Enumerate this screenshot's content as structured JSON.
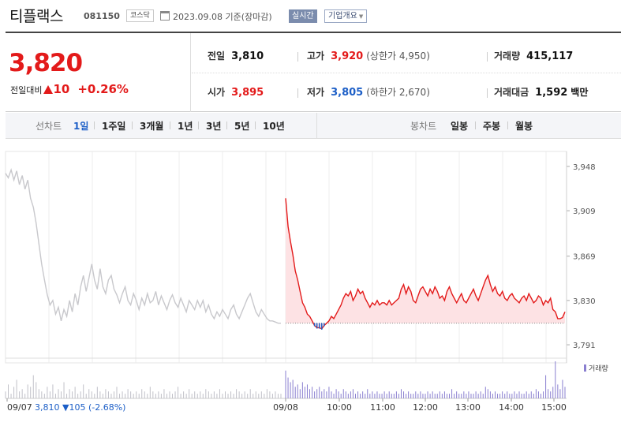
{
  "header": {
    "company_name": "티플랙스",
    "code": "081150",
    "market": "코스닥",
    "date_text": "2023.09.08  기준(장마감)",
    "realtime_label": "실시간",
    "company_info_label": "기업개요"
  },
  "price": {
    "current": "3,820",
    "change_label": "전일대비",
    "change": "10",
    "change_pct": "+0.26%",
    "prev_close_label": "전일",
    "prev_close": "3,810",
    "high_label": "고가",
    "high": "3,920",
    "upper_limit": "(상한가 4,950)",
    "volume_label": "거래량",
    "volume": "415,117",
    "open_label": "시가",
    "open": "3,895",
    "low_label": "저가",
    "low": "3,805",
    "lower_limit": "(하한가 2,670)",
    "amount_label": "거래대금",
    "amount": "1,592",
    "amount_unit": "백만"
  },
  "period_bar": {
    "line_chart_label": "선차트",
    "line_periods": [
      "1일",
      "1주일",
      "3개월",
      "1년",
      "3년",
      "5년",
      "10년"
    ],
    "active_period": "1일",
    "candle_chart_label": "봉차트",
    "candle_periods": [
      "일봉",
      "주봉",
      "월봉"
    ]
  },
  "colors": {
    "up": "#e31a1a",
    "down": "#1d5fc7",
    "prev_day_line": "#c8c8cc",
    "area_fill": "#fde2e4",
    "volume": "#8a7fd0"
  },
  "chart_data": {
    "type": "line",
    "y_ticks": [
      "3,948",
      "3,909",
      "3,869",
      "3,830",
      "3,791"
    ],
    "y_tick_values": [
      3948,
      3909,
      3869,
      3830,
      3791
    ],
    "ylim": [
      3782,
      3957
    ],
    "baseline": 3810,
    "x_tick_labels": [
      "09/07",
      "09/08",
      "10:00",
      "11:00",
      "12:00",
      "13:00",
      "14:00",
      "15:00"
    ],
    "prev_day_label": "09/07 3,810 ▼105 (-2.68%)",
    "volume_legend": "거래량",
    "series": [
      {
        "date": "09/07",
        "values": [
          3942,
          3938,
          3945,
          3936,
          3944,
          3932,
          3940,
          3928,
          3936,
          3920,
          3912,
          3898,
          3880,
          3862,
          3848,
          3835,
          3826,
          3830,
          3818,
          3824,
          3812,
          3822,
          3816,
          3830,
          3820,
          3836,
          3826,
          3842,
          3852,
          3838,
          3850,
          3862,
          3848,
          3840,
          3858,
          3842,
          3836,
          3848,
          3852,
          3840,
          3835,
          3828,
          3836,
          3842,
          3830,
          3826,
          3836,
          3830,
          3822,
          3832,
          3826,
          3836,
          3828,
          3830,
          3838,
          3826,
          3834,
          3828,
          3822,
          3830,
          3835,
          3828,
          3824,
          3832,
          3826,
          3820,
          3830,
          3826,
          3822,
          3830,
          3824,
          3830,
          3820,
          3826,
          3818,
          3814,
          3820,
          3816,
          3822,
          3818,
          3814,
          3822,
          3826,
          3818,
          3814,
          3820,
          3826,
          3832,
          3836,
          3828,
          3820,
          3816,
          3822,
          3818,
          3814,
          3812,
          3812,
          3811,
          3810,
          3810
        ]
      },
      {
        "date": "09/08",
        "values": [
          3920,
          3895,
          3882,
          3870,
          3856,
          3848,
          3838,
          3828,
          3824,
          3818,
          3816,
          3812,
          3808,
          3806,
          3806,
          3805,
          3808,
          3810,
          3812,
          3816,
          3814,
          3818,
          3822,
          3826,
          3832,
          3836,
          3834,
          3838,
          3830,
          3834,
          3840,
          3836,
          3838,
          3832,
          3828,
          3824,
          3828,
          3826,
          3830,
          3826,
          3828,
          3828,
          3826,
          3830,
          3826,
          3828,
          3830,
          3832,
          3840,
          3844,
          3836,
          3842,
          3838,
          3830,
          3828,
          3834,
          3840,
          3842,
          3838,
          3834,
          3840,
          3836,
          3842,
          3838,
          3832,
          3834,
          3830,
          3838,
          3842,
          3836,
          3832,
          3828,
          3832,
          3836,
          3830,
          3828,
          3832,
          3836,
          3840,
          3834,
          3830,
          3836,
          3842,
          3848,
          3852,
          3844,
          3838,
          3842,
          3836,
          3834,
          3838,
          3832,
          3830,
          3834,
          3836,
          3832,
          3830,
          3828,
          3832,
          3834,
          3830,
          3836,
          3832,
          3828,
          3830,
          3834,
          3832,
          3826,
          3830,
          3828,
          3832,
          3822,
          3820,
          3814,
          3814,
          3815,
          3820
        ]
      }
    ],
    "volume": [
      {
        "date": "09/07",
        "values": [
          3,
          6,
          2,
          5,
          8,
          3,
          4,
          2,
          6,
          5,
          10,
          7,
          4,
          3,
          2,
          5,
          3,
          6,
          2,
          4,
          3,
          7,
          2,
          4,
          3,
          5,
          2,
          3,
          6,
          2,
          4,
          3,
          2,
          5,
          3,
          2,
          4,
          3,
          2,
          3,
          5,
          2,
          3,
          2,
          4,
          3,
          2,
          3,
          2,
          4,
          3,
          2,
          5,
          3,
          2,
          3,
          2,
          4,
          2,
          3,
          2,
          3,
          5,
          2,
          3,
          2,
          4,
          2,
          3,
          2,
          3,
          2,
          4,
          3,
          2,
          3,
          2,
          4,
          2,
          3,
          2,
          3,
          2,
          4,
          3,
          2,
          3,
          2,
          4,
          2,
          3,
          2,
          3,
          2,
          4,
          3,
          2,
          3,
          2,
          2
        ]
      },
      {
        "date": "09/08",
        "values": [
          12,
          9,
          7,
          8,
          5,
          6,
          4,
          7,
          5,
          6,
          4,
          5,
          3,
          4,
          5,
          3,
          4,
          3,
          5,
          3,
          2,
          4,
          3,
          2,
          4,
          3,
          2,
          3,
          4,
          2,
          3,
          2,
          3,
          2,
          4,
          2,
          3,
          2,
          3,
          2,
          2,
          3,
          2,
          3,
          2,
          2,
          3,
          2,
          4,
          3,
          2,
          3,
          2,
          2,
          3,
          2,
          3,
          2,
          2,
          3,
          2,
          3,
          2,
          2,
          3,
          2,
          3,
          2,
          2,
          4,
          2,
          3,
          2,
          2,
          3,
          2,
          3,
          2,
          2,
          3,
          2,
          3,
          2,
          5,
          4,
          3,
          2,
          3,
          2,
          2,
          3,
          2,
          3,
          2,
          2,
          3,
          2,
          3,
          2,
          2,
          3,
          2,
          3,
          2,
          4,
          3,
          2,
          3,
          10,
          4,
          3,
          5,
          16,
          6,
          4,
          8,
          5
        ]
      }
    ]
  }
}
